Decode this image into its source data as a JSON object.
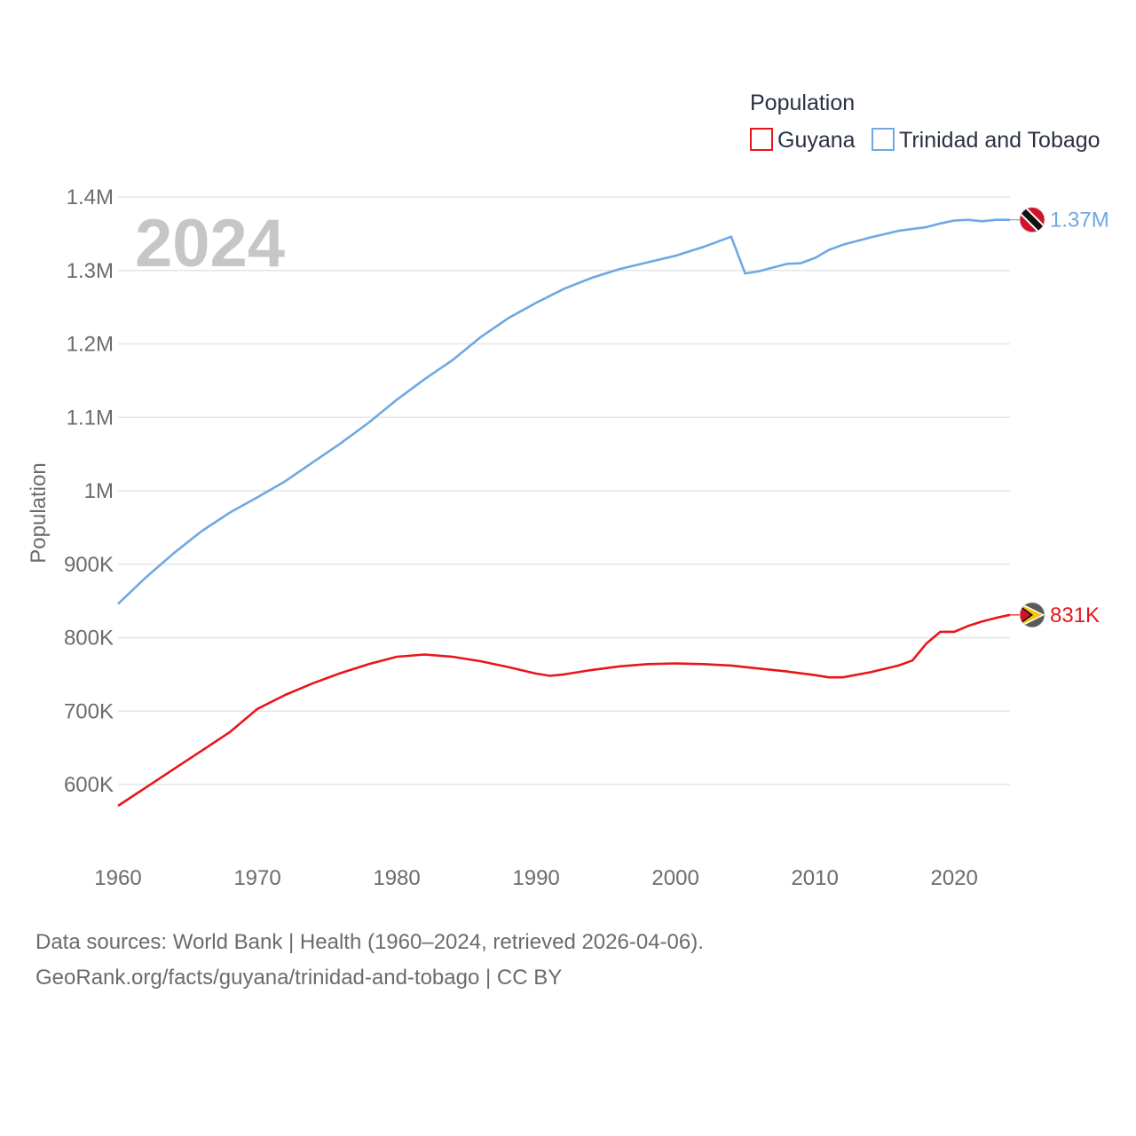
{
  "chart_data": {
    "type": "line",
    "legend_title": "Population",
    "ylabel": "Population",
    "xlabel": "",
    "year_label": "2024",
    "xlim": [
      1960,
      2024
    ],
    "ylim": [
      530000,
      1400000
    ],
    "x_ticks": [
      {
        "value": 1960,
        "label": "1960"
      },
      {
        "value": 1970,
        "label": "1970"
      },
      {
        "value": 1980,
        "label": "1980"
      },
      {
        "value": 1990,
        "label": "1990"
      },
      {
        "value": 2000,
        "label": "2000"
      },
      {
        "value": 2010,
        "label": "2010"
      },
      {
        "value": 2020,
        "label": "2020"
      }
    ],
    "y_ticks": [
      {
        "value": 600000,
        "label": "600K"
      },
      {
        "value": 700000,
        "label": "700K"
      },
      {
        "value": 800000,
        "label": "800K"
      },
      {
        "value": 900000,
        "label": "900K"
      },
      {
        "value": 1000000,
        "label": "1M"
      },
      {
        "value": 1100000,
        "label": "1.1M"
      },
      {
        "value": 1200000,
        "label": "1.2M"
      },
      {
        "value": 1300000,
        "label": "1.3M"
      },
      {
        "value": 1400000,
        "label": "1.4M"
      }
    ],
    "series": [
      {
        "name": "Guyana",
        "color": "#e8161b",
        "flag": "guyana-flag",
        "end_label": "831K",
        "points": [
          [
            1960,
            571000
          ],
          [
            1962,
            596000
          ],
          [
            1964,
            621000
          ],
          [
            1966,
            646000
          ],
          [
            1968,
            671000
          ],
          [
            1970,
            703000
          ],
          [
            1972,
            722000
          ],
          [
            1974,
            738000
          ],
          [
            1976,
            752000
          ],
          [
            1978,
            764000
          ],
          [
            1980,
            774000
          ],
          [
            1982,
            777000
          ],
          [
            1984,
            774000
          ],
          [
            1986,
            768000
          ],
          [
            1988,
            760000
          ],
          [
            1990,
            751000
          ],
          [
            1991,
            748000
          ],
          [
            1992,
            750000
          ],
          [
            1994,
            756000
          ],
          [
            1996,
            761000
          ],
          [
            1998,
            764000
          ],
          [
            2000,
            765000
          ],
          [
            2002,
            764000
          ],
          [
            2004,
            762000
          ],
          [
            2006,
            758000
          ],
          [
            2008,
            754000
          ],
          [
            2010,
            749000
          ],
          [
            2011,
            746000
          ],
          [
            2012,
            746000
          ],
          [
            2014,
            753000
          ],
          [
            2016,
            762000
          ],
          [
            2017,
            769000
          ],
          [
            2018,
            792000
          ],
          [
            2019,
            808000
          ],
          [
            2020,
            808000
          ],
          [
            2021,
            816000
          ],
          [
            2022,
            822000
          ],
          [
            2023,
            827000
          ],
          [
            2024,
            831000
          ]
        ]
      },
      {
        "name": "Trinidad and Tobago",
        "color": "#6fa8e2",
        "flag": "trinidad-and-tobago-flag",
        "end_label": "1.37M",
        "points": [
          [
            1960,
            846000
          ],
          [
            1962,
            882000
          ],
          [
            1964,
            915000
          ],
          [
            1966,
            945000
          ],
          [
            1968,
            970000
          ],
          [
            1970,
            991000
          ],
          [
            1972,
            1013000
          ],
          [
            1974,
            1039000
          ],
          [
            1976,
            1065000
          ],
          [
            1978,
            1093000
          ],
          [
            1980,
            1124000
          ],
          [
            1982,
            1152000
          ],
          [
            1984,
            1178000
          ],
          [
            1986,
            1209000
          ],
          [
            1988,
            1235000
          ],
          [
            1990,
            1256000
          ],
          [
            1992,
            1275000
          ],
          [
            1994,
            1290000
          ],
          [
            1996,
            1302000
          ],
          [
            1998,
            1311000
          ],
          [
            2000,
            1320000
          ],
          [
            2002,
            1332000
          ],
          [
            2004,
            1346000
          ],
          [
            2005,
            1296000
          ],
          [
            2006,
            1299000
          ],
          [
            2008,
            1309000
          ],
          [
            2009,
            1310000
          ],
          [
            2010,
            1317000
          ],
          [
            2011,
            1328000
          ],
          [
            2012,
            1335000
          ],
          [
            2014,
            1345000
          ],
          [
            2016,
            1354000
          ],
          [
            2018,
            1359000
          ],
          [
            2019,
            1364000
          ],
          [
            2020,
            1368000
          ],
          [
            2021,
            1369000
          ],
          [
            2022,
            1367000
          ],
          [
            2023,
            1369000
          ],
          [
            2024,
            1369000
          ]
        ]
      }
    ]
  },
  "source": {
    "line1": "Data sources: World Bank | Health (1960–2024, retrieved 2026-04-06).",
    "line2": "GeoRank.org/facts/guyana/trinidad-and-tobago | CC BY"
  }
}
